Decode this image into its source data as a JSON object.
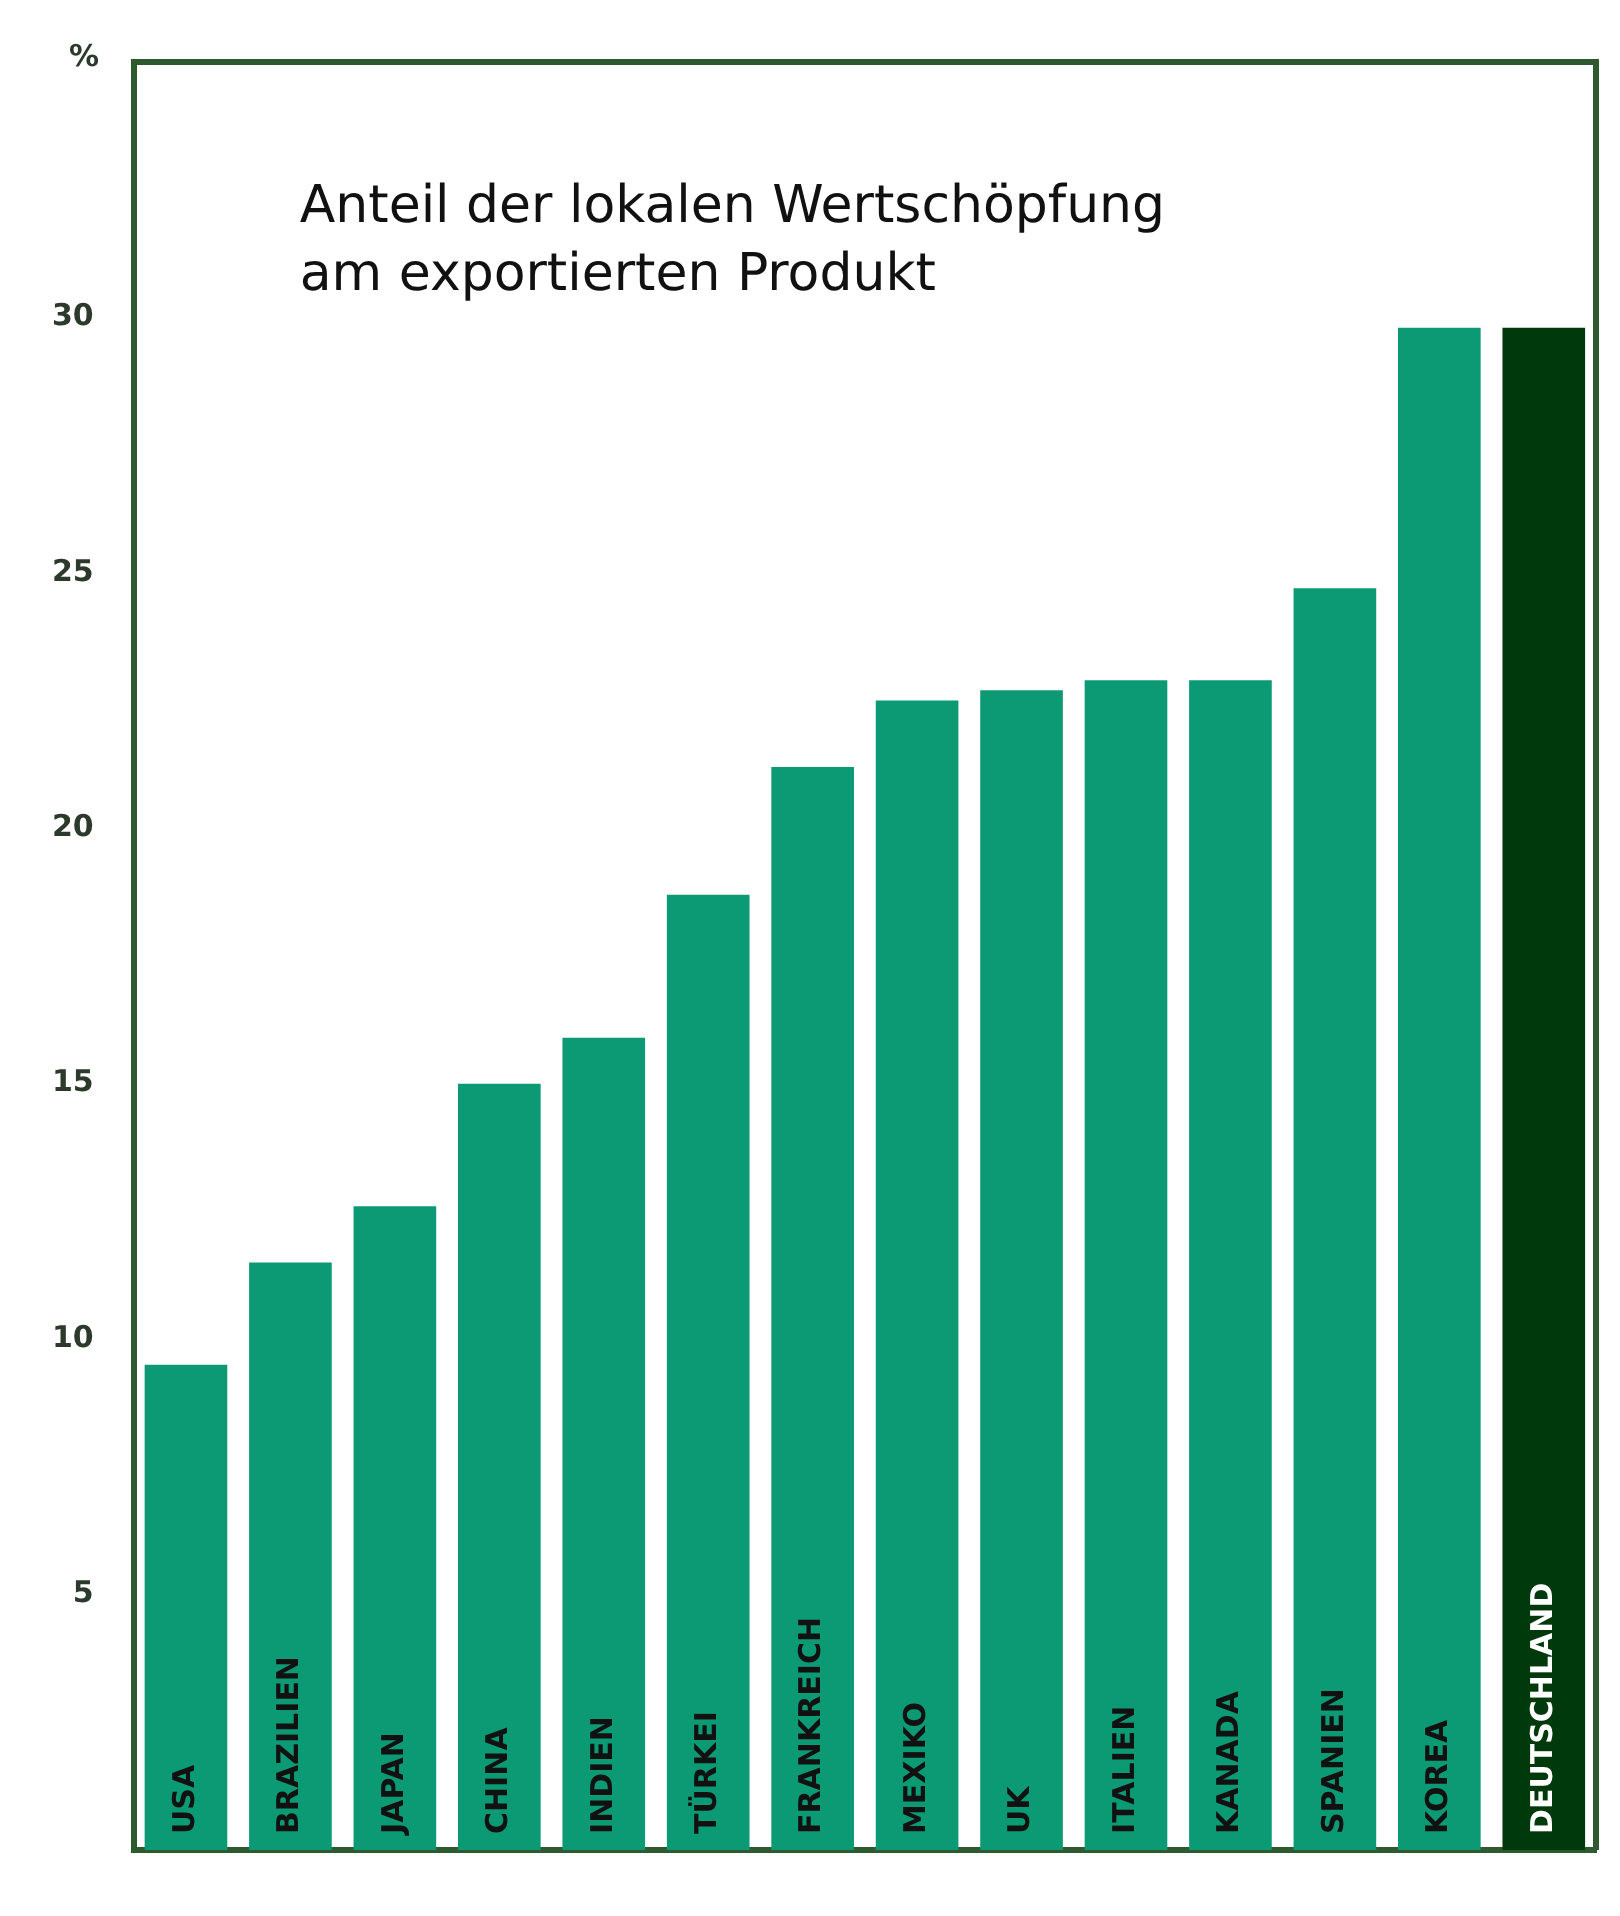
{
  "chart_data": {
    "type": "bar",
    "title": "Anteil der lokalen Wertschöpfung\nam exportierten Produkt",
    "ylabel": "%",
    "categories": [
      "USA",
      "BRAZILIEN",
      "JAPAN",
      "CHINA",
      "INDIEN",
      "TÜRKEI",
      "FRANKREICH",
      "MEXIKO",
      "UK",
      "ITALIEN",
      "KANADA",
      "SPANIEN",
      "KOREA",
      "DEUTSCHLAND"
    ],
    "values": [
      9.5,
      11.5,
      12.6,
      15.0,
      15.9,
      18.7,
      21.2,
      22.5,
      22.7,
      22.9,
      22.9,
      24.7,
      29.8,
      29.8
    ],
    "colors": [
      "#0b9a74",
      "#0b9a74",
      "#0b9a74",
      "#0b9a74",
      "#0b9a74",
      "#0b9a74",
      "#0b9a74",
      "#0b9a74",
      "#0b9a74",
      "#0b9a74",
      "#0b9a74",
      "#0b9a74",
      "#0b9a74",
      "#003a0c"
    ],
    "ylim": [
      0,
      35
    ],
    "yticks": [
      5,
      10,
      15,
      20,
      25,
      30
    ],
    "grid": false,
    "legend": false
  }
}
